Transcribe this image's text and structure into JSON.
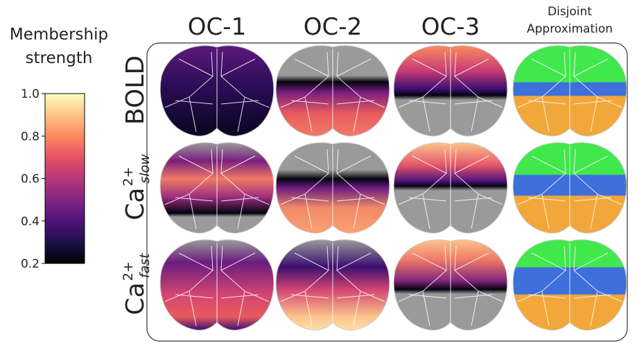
{
  "colorbar": {
    "title": [
      "Membership",
      "strength"
    ],
    "lim": [
      0.2,
      1.0
    ],
    "ticks": [
      {
        "value": 0.2,
        "label": "0.2"
      },
      {
        "value": 0.4,
        "label": "0.4"
      },
      {
        "value": 0.6,
        "label": "0.6"
      },
      {
        "value": 0.8,
        "label": "0.8"
      },
      {
        "value": 1.0,
        "label": "1.0"
      }
    ]
  },
  "columns": [
    "OC-1",
    "OC-2",
    "OC-3",
    [
      "Disjoint",
      "Approximation"
    ]
  ],
  "rows": [
    {
      "base": "BOLD"
    },
    {
      "base": "Ca",
      "sup": "2+",
      "sub": "slow"
    },
    {
      "base": "Ca",
      "sup": "2+",
      "sub": "fast"
    }
  ]
}
